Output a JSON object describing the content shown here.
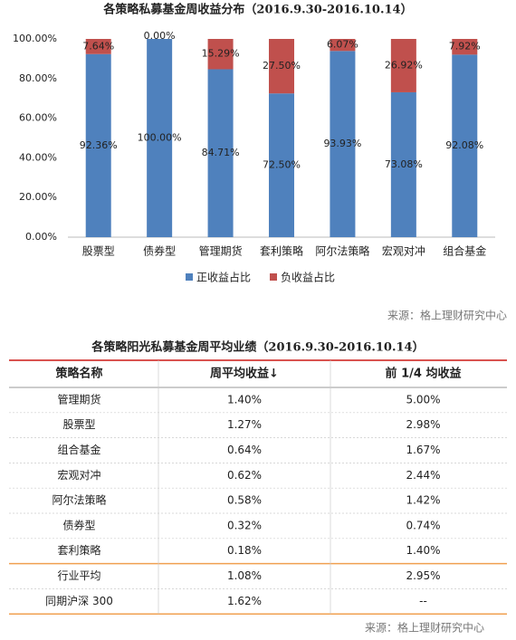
{
  "chart_data": {
    "type": "bar",
    "stacked": true,
    "title": "各策略私募基金周收益分布（2016.9.30-2016.10.14）",
    "categories": [
      "股票型",
      "债券型",
      "管理期货",
      "套利策略",
      "阿尔法策略",
      "宏观对冲",
      "组合基金"
    ],
    "series": [
      {
        "name": "正收益占比",
        "color": "#4f81bd",
        "values": [
          92.36,
          100,
          84.71,
          72.5,
          93.93,
          73.08,
          92.08
        ],
        "value_labels": [
          "92.36%",
          "100.00%",
          "84.71%",
          "72.50%",
          "93.93%",
          "73.08%",
          "92.08%"
        ]
      },
      {
        "name": "负收益占比",
        "color": "#c0504d",
        "values": [
          7.64,
          0,
          15.29,
          27.5,
          6.07,
          26.92,
          7.92
        ],
        "value_labels": [
          "7.64%",
          "0.00%",
          "15.29%",
          "27.50%",
          "6.07%",
          "26.92%",
          "7.92%"
        ]
      }
    ],
    "ylim": [
      0,
      100
    ],
    "yticks": [
      {
        "value": 0,
        "label": "0.00%"
      },
      {
        "value": 20,
        "label": "20.00%"
      },
      {
        "value": 40,
        "label": "40.00%"
      },
      {
        "value": 60,
        "label": "60.00%"
      },
      {
        "value": 80,
        "label": "80.00%"
      },
      {
        "value": 100,
        "label": "100.00%"
      }
    ],
    "grid": false,
    "legend": "bottom",
    "source": "来源：格上理财研究中心"
  },
  "table": {
    "title": "各策略阳光私募基金周平均业绩（2016.9.30-2016.10.14）",
    "columns": [
      "策略名称",
      "周平均收益↓",
      "前 1/4 均收益"
    ],
    "rows": [
      [
        "管理期货",
        "1.40%",
        "5.00%"
      ],
      [
        "股票型",
        "1.27%",
        "2.98%"
      ],
      [
        "组合基金",
        "0.64%",
        "1.67%"
      ],
      [
        "宏观对冲",
        "0.62%",
        "2.44%"
      ],
      [
        "阿尔法策略",
        "0.58%",
        "1.42%"
      ],
      [
        "债券型",
        "0.32%",
        "0.74%"
      ],
      [
        "套利策略",
        "0.18%",
        "1.40%"
      ],
      [
        "行业平均",
        "1.08%",
        "2.95%"
      ],
      [
        "同期沪深 300",
        "1.62%",
        "--"
      ]
    ],
    "source": "来源：格上理财研究中心"
  }
}
